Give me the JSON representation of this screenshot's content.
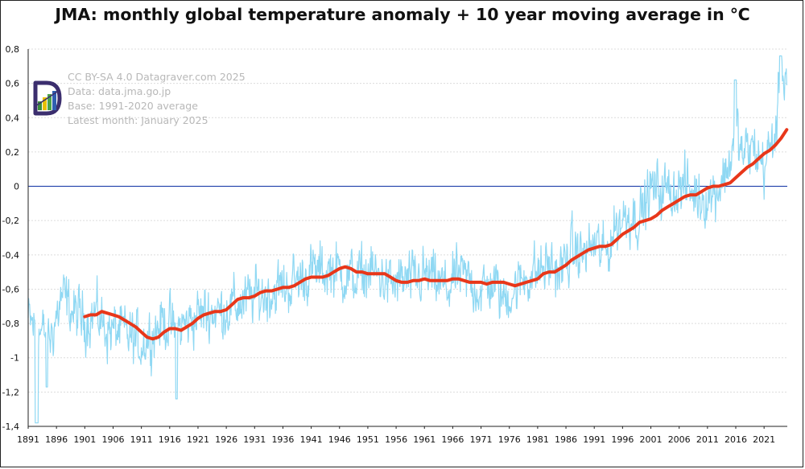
{
  "chart_data": {
    "type": "line",
    "title": "JMA: monthly global temperature anomaly + 10 year moving average in ℃",
    "xlabel": "",
    "ylabel": "",
    "xlim": [
      1891,
      2025.1
    ],
    "ylim": [
      -1.4,
      0.8
    ],
    "x_ticks": [
      "1891",
      "1896",
      "1901",
      "1906",
      "1911",
      "1916",
      "1921",
      "1926",
      "1931",
      "1936",
      "1941",
      "1946",
      "1951",
      "1956",
      "1961",
      "1966",
      "1971",
      "1976",
      "1981",
      "1986",
      "1991",
      "1996",
      "2001",
      "2006",
      "2011",
      "2016",
      "2021"
    ],
    "y_ticks": [
      "0,8",
      "0,6",
      "0,4",
      "0,2",
      "0",
      "-0,2",
      "-0,4",
      "-0,6",
      "-0,8",
      "-1",
      "-1,2",
      "-1,4"
    ],
    "y_tick_values": [
      0.8,
      0.6,
      0.4,
      0.2,
      0,
      -0.2,
      -0.4,
      -0.6,
      -0.8,
      -1.0,
      -1.2,
      -1.4
    ],
    "grid": true,
    "reference_line": {
      "y": 0,
      "color": "#1a3aa8"
    },
    "credits": [
      "CC BY-SA 4.0 Datagraver.com 2025",
      "Data: data.jma.go.jp",
      "Base: 1991-2020 average",
      "Latest month: January 2025"
    ],
    "series": [
      {
        "name": "Monthly anomaly",
        "color": "#8fd8f3",
        "width": 1.2,
        "generated_from_anchors": true,
        "anchors_x": [
          1891,
          1893,
          1895,
          1897,
          1899,
          1901,
          1903,
          1905,
          1907,
          1909,
          1911,
          1913,
          1915,
          1917,
          1919,
          1921,
          1923,
          1925,
          1927,
          1929,
          1931,
          1933,
          1935,
          1937,
          1939,
          1941,
          1943,
          1945,
          1947,
          1949,
          1951,
          1953,
          1955,
          1957,
          1959,
          1961,
          1963,
          1965,
          1967,
          1969,
          1971,
          1973,
          1975,
          1977,
          1979,
          1981,
          1983,
          1985,
          1987,
          1989,
          1991,
          1993,
          1995,
          1997,
          1999,
          2001,
          2003,
          2005,
          2007,
          2009,
          2011,
          2013,
          2015,
          2016,
          2017,
          2019,
          2021,
          2023,
          2024,
          2025.08
        ],
        "anchors_y": [
          -0.78,
          -0.85,
          -0.88,
          -0.64,
          -0.74,
          -0.78,
          -0.74,
          -0.84,
          -0.84,
          -0.88,
          -0.92,
          -0.85,
          -0.78,
          -0.84,
          -0.8,
          -0.75,
          -0.73,
          -0.73,
          -0.7,
          -0.68,
          -0.64,
          -0.63,
          -0.6,
          -0.58,
          -0.54,
          -0.5,
          -0.5,
          -0.48,
          -0.52,
          -0.54,
          -0.5,
          -0.52,
          -0.58,
          -0.55,
          -0.56,
          -0.52,
          -0.56,
          -0.6,
          -0.52,
          -0.55,
          -0.62,
          -0.56,
          -0.66,
          -0.6,
          -0.52,
          -0.5,
          -0.46,
          -0.5,
          -0.38,
          -0.4,
          -0.34,
          -0.4,
          -0.22,
          -0.16,
          -0.18,
          -0.02,
          -0.02,
          -0.03,
          0.0,
          -0.05,
          -0.07,
          0.0,
          0.14,
          0.38,
          0.18,
          0.22,
          0.12,
          0.3,
          0.62,
          0.7
        ],
        "noise_amplitude": 0.09
      },
      {
        "name": "10 year moving average",
        "color": "#e8371a",
        "width": 4,
        "x": [
          1901,
          1902,
          1903,
          1904,
          1905,
          1906,
          1907,
          1908,
          1909,
          1910,
          1911,
          1912,
          1913,
          1914,
          1915,
          1916,
          1917,
          1918,
          1919,
          1920,
          1921,
          1922,
          1923,
          1924,
          1925,
          1926,
          1927,
          1928,
          1929,
          1930,
          1931,
          1932,
          1933,
          1934,
          1935,
          1936,
          1937,
          1938,
          1939,
          1940,
          1941,
          1942,
          1943,
          1944,
          1945,
          1946,
          1947,
          1948,
          1949,
          1950,
          1951,
          1952,
          1953,
          1954,
          1955,
          1956,
          1957,
          1958,
          1959,
          1960,
          1961,
          1962,
          1963,
          1964,
          1965,
          1966,
          1967,
          1968,
          1969,
          1970,
          1971,
          1972,
          1973,
          1974,
          1975,
          1976,
          1977,
          1978,
          1979,
          1980,
          1981,
          1982,
          1983,
          1984,
          1985,
          1986,
          1987,
          1988,
          1989,
          1990,
          1991,
          1992,
          1993,
          1994,
          1995,
          1996,
          1997,
          1998,
          1999,
          2000,
          2001,
          2002,
          2003,
          2004,
          2005,
          2006,
          2007,
          2008,
          2009,
          2010,
          2011,
          2012,
          2013,
          2014,
          2015,
          2016,
          2017,
          2018,
          2019,
          2020,
          2021,
          2022,
          2023,
          2024,
          2025
        ],
        "values": [
          -0.76,
          -0.75,
          -0.75,
          -0.73,
          -0.74,
          -0.75,
          -0.76,
          -0.78,
          -0.8,
          -0.82,
          -0.85,
          -0.88,
          -0.89,
          -0.88,
          -0.85,
          -0.83,
          -0.83,
          -0.84,
          -0.82,
          -0.8,
          -0.77,
          -0.75,
          -0.74,
          -0.73,
          -0.73,
          -0.72,
          -0.69,
          -0.66,
          -0.65,
          -0.65,
          -0.64,
          -0.62,
          -0.61,
          -0.61,
          -0.6,
          -0.59,
          -0.59,
          -0.58,
          -0.56,
          -0.54,
          -0.53,
          -0.53,
          -0.53,
          -0.52,
          -0.5,
          -0.48,
          -0.47,
          -0.48,
          -0.5,
          -0.5,
          -0.51,
          -0.51,
          -0.51,
          -0.51,
          -0.53,
          -0.55,
          -0.56,
          -0.56,
          -0.55,
          -0.55,
          -0.54,
          -0.55,
          -0.55,
          -0.55,
          -0.55,
          -0.54,
          -0.54,
          -0.55,
          -0.56,
          -0.56,
          -0.56,
          -0.57,
          -0.56,
          -0.56,
          -0.56,
          -0.57,
          -0.58,
          -0.57,
          -0.56,
          -0.55,
          -0.54,
          -0.51,
          -0.5,
          -0.5,
          -0.48,
          -0.46,
          -0.43,
          -0.41,
          -0.39,
          -0.37,
          -0.36,
          -0.35,
          -0.35,
          -0.34,
          -0.31,
          -0.28,
          -0.26,
          -0.24,
          -0.21,
          -0.2,
          -0.19,
          -0.17,
          -0.14,
          -0.12,
          -0.1,
          -0.08,
          -0.06,
          -0.05,
          -0.05,
          -0.03,
          -0.01,
          0.0,
          0.0,
          0.01,
          0.02,
          0.05,
          0.08,
          0.11,
          0.13,
          0.16,
          0.19,
          0.21,
          0.24,
          0.28,
          0.33
        ]
      }
    ]
  }
}
